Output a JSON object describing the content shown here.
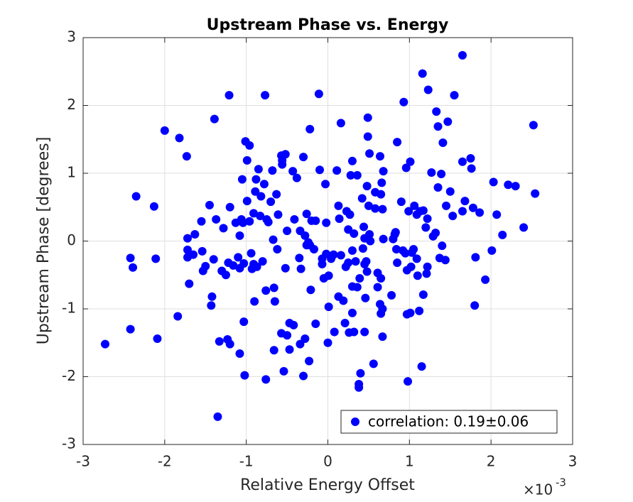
{
  "chart_data": {
    "type": "scatter",
    "title": "Upstream Phase vs. Energy",
    "x_label": "Relative Energy Offset",
    "y_label": "Upstream Phase [degrees]",
    "x_multiplier": "×10",
    "x_multiplier_power": "-3",
    "xlim": [
      -3,
      3
    ],
    "ylim": [
      -3,
      3
    ],
    "xticks": [
      -3,
      -2,
      -1,
      0,
      1,
      2,
      3
    ],
    "yticks": [
      -3,
      -2,
      -1,
      0,
      1,
      2,
      3
    ],
    "grid": true,
    "legend_loc": "southeast",
    "x": [
      -2.73,
      -2.42,
      -2.42,
      -2.39,
      -2.35,
      -2.13,
      -2.11,
      -2.09,
      -2.0,
      -1.82,
      -1.84,
      -1.73,
      -1.72,
      -1.72,
      -1.72,
      -1.7,
      -1.65,
      -1.63,
      -1.55,
      -1.54,
      -1.53,
      -1.5,
      -1.45,
      -1.42,
      -1.43,
      -1.4,
      -1.39,
      -1.37,
      -1.35,
      -1.33,
      -1.3,
      -1.28,
      -1.25,
      -1.23,
      -1.22,
      -1.21,
      -1.2,
      -1.2,
      -1.16,
      -1.13,
      -1.1,
      -1.08,
      -1.08,
      -1.08,
      -1.06,
      -1.05,
      -1.04,
      -1.03,
      -1.03,
      -1.02,
      -1.01,
      -0.99,
      -0.99,
      -0.96,
      -0.96,
      -0.94,
      -0.93,
      -0.91,
      -0.91,
      -0.9,
      -0.89,
      -0.88,
      -0.87,
      -0.85,
      -0.83,
      -0.82,
      -0.8,
      -0.78,
      -0.77,
      -0.76,
      -0.76,
      -0.75,
      -0.73,
      -0.7,
      -0.68,
      -0.66,
      -0.67,
      -0.66,
      -0.65,
      -0.63,
      -0.62,
      -0.61,
      -0.57,
      -0.57,
      -0.56,
      -0.56,
      -0.54,
      -0.52,
      -0.52,
      -0.5,
      -0.5,
      -0.47,
      -0.47,
      -0.43,
      -0.42,
      -0.41,
      -0.38,
      -0.35,
      -0.34,
      -0.34,
      -0.33,
      -0.3,
      -0.3,
      -0.28,
      -0.28,
      -0.26,
      -0.26,
      -0.24,
      -0.23,
      -0.21,
      -0.22,
      -0.22,
      -0.2,
      -0.17,
      -0.15,
      -0.15,
      -0.11,
      -0.1,
      -0.07,
      -0.07,
      -0.05,
      -0.03,
      -0.02,
      -0.02,
      0.0,
      0.01,
      0.01,
      0.04,
      0.07,
      0.08,
      0.11,
      0.13,
      0.13,
      0.14,
      0.16,
      0.16,
      0.19,
      0.21,
      0.22,
      0.23,
      0.25,
      0.25,
      0.26,
      0.27,
      0.28,
      0.3,
      0.3,
      0.3,
      0.3,
      0.32,
      0.32,
      0.34,
      0.36,
      0.36,
      0.38,
      0.38,
      0.39,
      0.4,
      0.42,
      0.43,
      0.45,
      0.44,
      0.45,
      0.45,
      0.46,
      0.47,
      0.48,
      0.48,
      0.49,
      0.49,
      0.5,
      0.51,
      0.51,
      0.52,
      0.56,
      0.58,
      0.58,
      0.61,
      0.61,
      0.64,
      0.64,
      0.65,
      0.65,
      0.65,
      0.66,
      0.67,
      0.67,
      0.67,
      0.68,
      0.68,
      0.78,
      0.8,
      0.82,
      0.83,
      0.84,
      0.85,
      0.85,
      0.9,
      0.92,
      0.93,
      0.95,
      0.96,
      0.97,
      0.97,
      0.98,
      0.99,
      1.01,
      1.01,
      1.02,
      1.03,
      1.05,
      1.06,
      1.09,
      1.09,
      1.1,
      1.12,
      1.13,
      1.15,
      1.16,
      1.17,
      1.17,
      1.2,
      1.21,
      1.22,
      1.22,
      1.23,
      1.27,
      1.29,
      1.32,
      1.33,
      1.35,
      1.35,
      1.37,
      1.39,
      1.4,
      1.41,
      1.44,
      1.45,
      1.47,
      1.5,
      1.53,
      1.55,
      1.65,
      1.65,
      1.65,
      1.68,
      1.75,
      1.76,
      1.78,
      1.8,
      1.81,
      1.86,
      1.93,
      2.01,
      2.03,
      2.07,
      2.14,
      2.21,
      2.3,
      2.4,
      2.52,
      2.54
    ],
    "series": [
      {
        "name": "correlation: 0.19±0.06",
        "color": "#0000ff",
        "values": [
          -1.52,
          -1.3,
          -0.25,
          -0.39,
          0.66,
          0.51,
          -0.26,
          -1.44,
          1.63,
          1.52,
          -1.11,
          1.25,
          0.04,
          -0.13,
          -0.24,
          -0.63,
          -0.2,
          0.1,
          0.29,
          -0.15,
          -0.44,
          -0.37,
          0.53,
          -0.82,
          -0.95,
          -0.27,
          1.8,
          0.32,
          -2.59,
          -1.48,
          -0.44,
          0.19,
          -0.5,
          -1.45,
          -0.32,
          2.15,
          0.5,
          -1.52,
          -0.36,
          0.27,
          -0.24,
          0.08,
          -0.4,
          -1.66,
          0.32,
          0.91,
          0.27,
          -0.33,
          -1.19,
          -1.98,
          1.47,
          0.59,
          1.19,
          1.41,
          0.29,
          -0.18,
          -0.41,
          -0.34,
          0.41,
          -0.89,
          0.73,
          0.91,
          -0.38,
          1.06,
          0.37,
          0.66,
          -0.3,
          0.84,
          2.15,
          -2.04,
          -0.73,
          0.32,
          0.28,
          0.58,
          1.04,
          -1.61,
          0.02,
          -0.69,
          -0.89,
          0.69,
          -0.12,
          0.39,
          -1.36,
          1.26,
          1.19,
          1.13,
          -1.92,
          1.28,
          -0.4,
          0.15,
          -1.39,
          -1.21,
          -1.6,
          1.03,
          -1.24,
          0.32,
          0.93,
          -0.25,
          0.15,
          -1.52,
          -0.41,
          -1.99,
          1.24,
          0.08,
          -1.44,
          -0.06,
          0.4,
          -0.02,
          -1.77,
          -0.72,
          -0.06,
          1.65,
          0.3,
          -0.12,
          -1.22,
          0.3,
          2.17,
          1.05,
          -0.34,
          -0.26,
          -0.55,
          0.84,
          0.27,
          -0.19,
          -1.5,
          -0.97,
          -0.51,
          -0.26,
          -0.2,
          -1.34,
          1.04,
          0.52,
          -0.82,
          0.33,
          -0.21,
          1.74,
          -0.88,
          -1.21,
          -0.38,
          0.44,
          0.17,
          -0.32,
          -1.35,
          0.39,
          0.97,
          1.18,
          -0.14,
          -0.67,
          -1.06,
          -1.34,
          0.11,
          -0.3,
          -0.68,
          0.97,
          -2.11,
          -2.16,
          -0.55,
          -1.95,
          0.63,
          -0.11,
          0.04,
          0.21,
          -0.34,
          -1.34,
          -0.84,
          -0.3,
          0.81,
          -0.45,
          1.54,
          1.82,
          0.52,
          1.29,
          0.1,
          0.0,
          -1.81,
          0.48,
          0.72,
          -0.47,
          -0.68,
          1.25,
          -0.93,
          0.69,
          -0.55,
          -1.07,
          0.86,
          -1.0,
          0.47,
          -1.41,
          1.03,
          0.03,
          -0.8,
          0.03,
          0.1,
          0.13,
          -0.12,
          1.46,
          -0.32,
          0.58,
          -0.14,
          2.05,
          -0.18,
          1.08,
          -1.08,
          -0.43,
          -2.07,
          0.44,
          1.17,
          -1.06,
          -0.38,
          -0.17,
          -0.12,
          0.52,
          -0.26,
          0.39,
          -0.51,
          -1.03,
          0.44,
          -1.85,
          2.47,
          0.45,
          -0.79,
          0.2,
          -0.48,
          -0.38,
          0.33,
          2.23,
          1.01,
          0.07,
          0.12,
          1.91,
          0.79,
          1.69,
          -0.25,
          0.99,
          -0.07,
          1.45,
          -0.28,
          0.52,
          1.76,
          0.73,
          0.37,
          2.15,
          2.74,
          1.17,
          0.44,
          0.59,
          1.22,
          1.07,
          0.49,
          -0.95,
          -0.24,
          0.42,
          -0.57,
          -0.14,
          0.87,
          0.39,
          0.09,
          0.83,
          0.81,
          0.2,
          1.71,
          0.7
        ]
      }
    ]
  }
}
